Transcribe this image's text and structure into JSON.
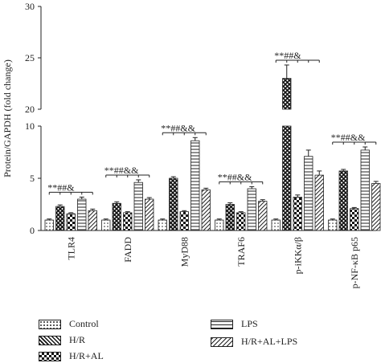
{
  "chart_data": {
    "type": "bar",
    "ylabel": "Protein/GAPDH (fold change)",
    "categories": [
      "TLR4",
      "FADD",
      "MyD88",
      "TRAF6",
      "p-iKKα/β",
      "p-NF-κB p65"
    ],
    "y_ticks_lower": [
      0,
      5,
      10
    ],
    "y_ticks_upper": [
      20,
      25,
      30
    ],
    "y_axis_break": [
      10,
      20
    ],
    "series": [
      {
        "name": "Control",
        "pattern": "dots",
        "values": [
          1.0,
          1.0,
          1.0,
          1.0,
          1.0,
          1.0
        ],
        "errors": [
          0.1,
          0.1,
          0.1,
          0.1,
          0.1,
          0.1
        ]
      },
      {
        "name": "H/R",
        "pattern": "crosshatch",
        "values": [
          2.3,
          2.6,
          5.0,
          2.5,
          10.0,
          5.7
        ],
        "errors": [
          0.15,
          0.15,
          0.15,
          0.15,
          0,
          0.15
        ]
      },
      {
        "name": "H/R+AL",
        "pattern": "checker",
        "values": [
          1.6,
          1.7,
          1.8,
          1.7,
          3.2,
          2.1
        ],
        "errors": [
          0.1,
          0.1,
          0.1,
          0.1,
          0.2,
          0.1
        ]
      },
      {
        "name": "LPS",
        "pattern": "hlines",
        "values": [
          3.0,
          4.6,
          8.6,
          4.0,
          7.1,
          7.7
        ],
        "errors": [
          0.2,
          0.25,
          0.3,
          0.2,
          0.6,
          0.3
        ]
      },
      {
        "name": "H/R+AL+LPS",
        "pattern": "diag",
        "values": [
          1.9,
          3.0,
          3.9,
          2.8,
          5.3,
          4.5
        ],
        "errors": [
          0.15,
          0.15,
          0.15,
          0.15,
          0.4,
          0.2
        ]
      }
    ],
    "upper_segment": {
      "category": "p-iKKα/β",
      "series": "H/R",
      "value": 23.0,
      "error": 1.3
    },
    "significance_labels": [
      "**##&",
      "**##&&",
      "**##&&",
      "**##&&",
      "**##&",
      "**##&&"
    ],
    "legend_placement": "bottom"
  }
}
